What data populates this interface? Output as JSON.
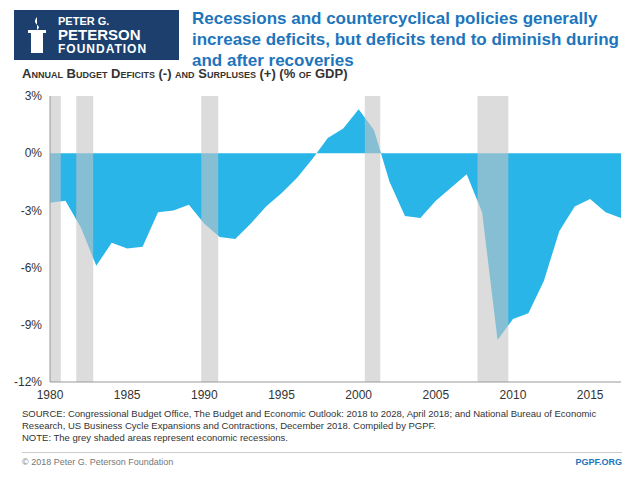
{
  "chart_data": {
    "type": "area",
    "title": "Recessions and countercyclical policies generally increase deficits, but deficits tend to diminish during and after recoveries",
    "subtitle": "Annual Budget Deficits (-) and Surpluses (+) (% of GDP)",
    "logo": [
      "PETER G.",
      "PETERSON",
      "FOUNDATION"
    ],
    "source": "SOURCE: Congressional Budget Office, The Budget and Economic Outlook: 2018 to 2028, April 2018; and National Bureau of Economic Research, US Business Cycle Expansions and Contractions, December 2018. Compiled by PGPF.",
    "note": "NOTE: The grey shaded areas represent economic recessions.",
    "copyright": "© 2018 Peter G. Peterson Foundation",
    "website": "PGPF.ORG",
    "x": [
      1980,
      1981,
      1982,
      1983,
      1984,
      1985,
      1986,
      1987,
      1988,
      1989,
      1990,
      1991,
      1992,
      1993,
      1994,
      1995,
      1996,
      1997,
      1998,
      1999,
      2000,
      2001,
      2002,
      2003,
      2004,
      2005,
      2006,
      2007,
      2008,
      2009,
      2010,
      2011,
      2012,
      2013,
      2014,
      2015,
      2016,
      2017
    ],
    "values": [
      -2.6,
      -2.5,
      -3.9,
      -5.9,
      -4.7,
      -5.0,
      -4.9,
      -3.1,
      -3.0,
      -2.7,
      -3.7,
      -4.4,
      -4.5,
      -3.7,
      -2.8,
      -2.1,
      -1.3,
      -0.3,
      0.8,
      1.3,
      2.3,
      1.2,
      -1.5,
      -3.3,
      -3.4,
      -2.5,
      -1.8,
      -1.1,
      -3.1,
      -9.8,
      -8.7,
      -8.4,
      -6.7,
      -4.1,
      -2.8,
      -2.4,
      -3.1,
      -3.4
    ],
    "color": "#29b5e8",
    "recessions": [
      [
        1980.0,
        1980.7
      ],
      [
        1981.7,
        1982.8
      ],
      [
        1989.8,
        1990.9
      ],
      [
        2000.4,
        2001.4
      ],
      [
        2007.7,
        2009.7
      ]
    ],
    "recession_color": "#c4c4c4",
    "xlim": [
      1980,
      2017
    ],
    "xticks": [
      1980,
      1985,
      1990,
      1995,
      2000,
      2005,
      2010,
      2015
    ],
    "ylim": [
      -12,
      3
    ],
    "yticks": [
      {
        "value": -12,
        "label": "-12%"
      },
      {
        "value": -9,
        "label": "-9%"
      },
      {
        "value": -6,
        "label": "-6%"
      },
      {
        "value": -3,
        "label": "-3%"
      },
      {
        "value": 0,
        "label": "0%"
      },
      {
        "value": 3,
        "label": "3%"
      }
    ],
    "grid": false
  }
}
